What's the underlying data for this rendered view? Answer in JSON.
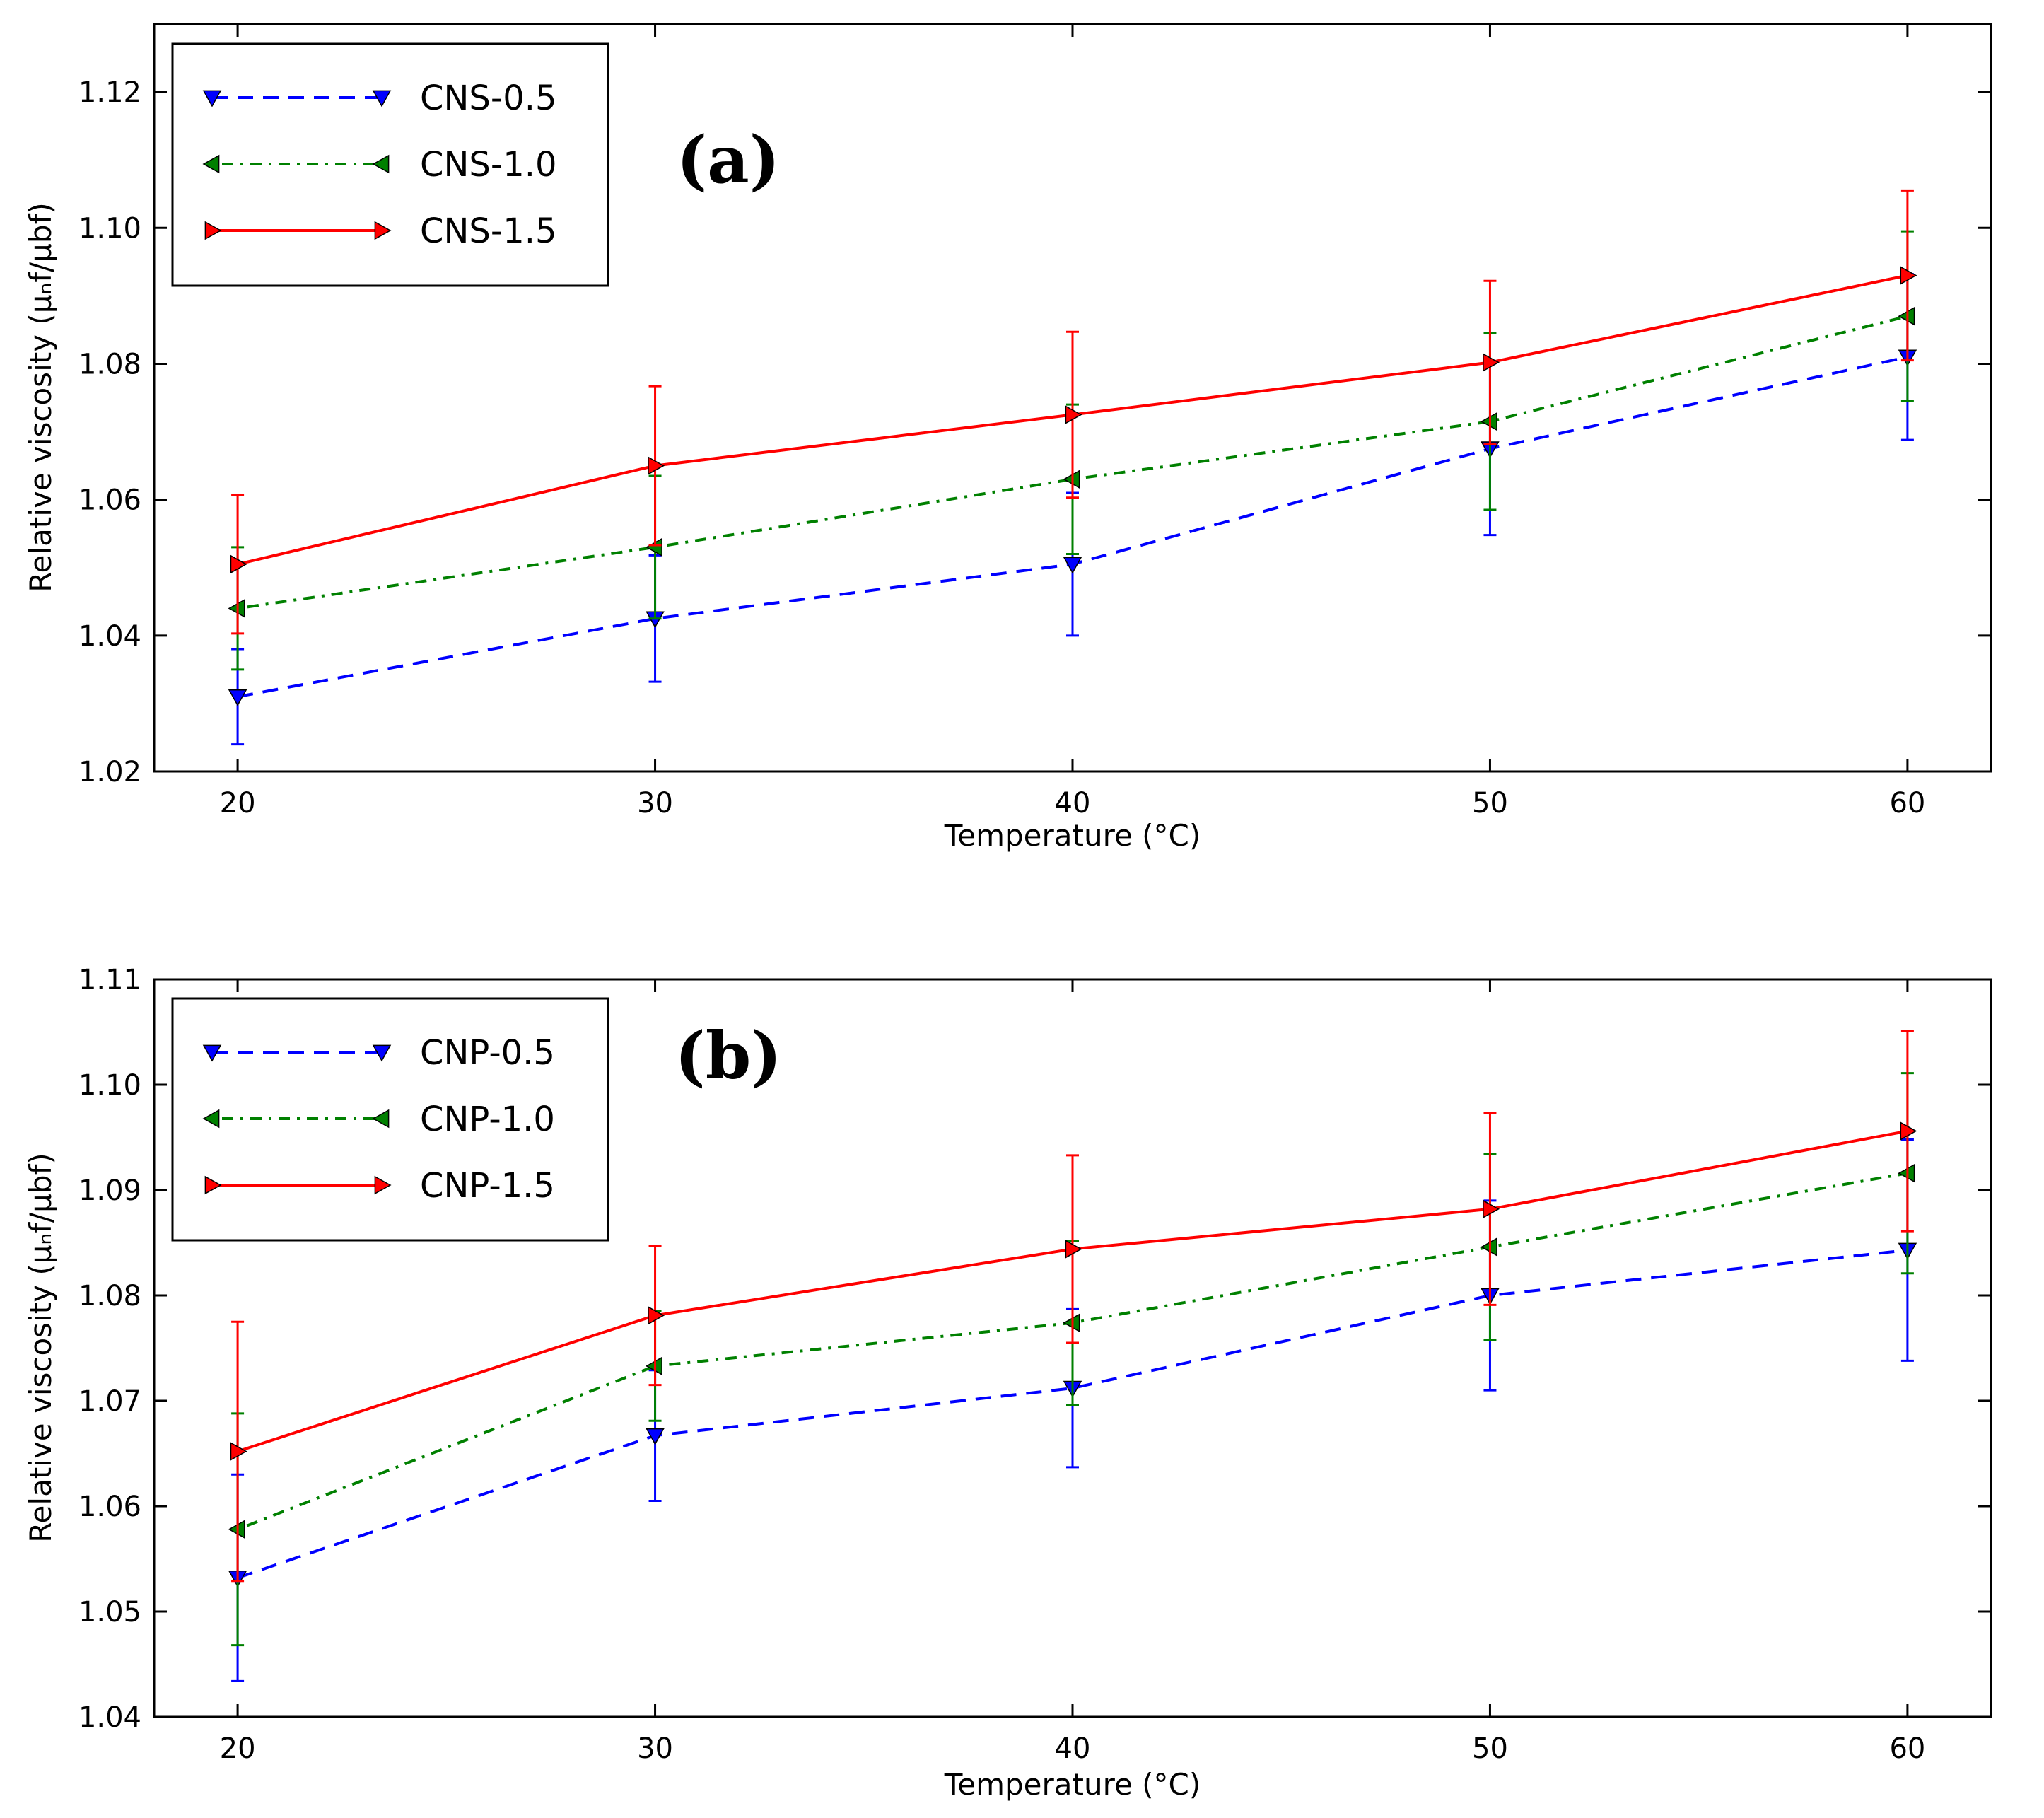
{
  "chart_data": [
    {
      "type": "line",
      "panel_label": "(a)",
      "xlabel": "Temperature (°C)",
      "ylabel": "Relative viscosity (μₙf/μbf)",
      "x": [
        20,
        30,
        40,
        50,
        60
      ],
      "xlim": [
        18,
        62
      ],
      "ylim": [
        1.02,
        1.13
      ],
      "xticks": [
        20,
        30,
        40,
        50,
        60
      ],
      "yticks": [
        1.02,
        1.04,
        1.06,
        1.08,
        1.1,
        1.12
      ],
      "xtick_labels": [
        "20",
        "30",
        "40",
        "50",
        "60"
      ],
      "ytick_labels": [
        "1.02",
        "1.04",
        "1.06",
        "1.08",
        "1.10",
        "1.12"
      ],
      "legend_position": "top-left",
      "series": [
        {
          "name": "CNS-0.5",
          "color": "#0000ff",
          "style": "dashed",
          "marker": "triangle-down",
          "values": [
            1.031,
            1.0425,
            1.0505,
            1.0675,
            1.081
          ],
          "errors": [
            0.007,
            0.0093,
            0.0105,
            0.0127,
            0.0122
          ]
        },
        {
          "name": "CNS-1.0",
          "color": "#008000",
          "style": "dashdot",
          "marker": "triangle-left",
          "values": [
            1.044,
            1.053,
            1.063,
            1.0715,
            1.087
          ],
          "errors": [
            0.009,
            0.0105,
            0.011,
            0.013,
            0.0125
          ]
        },
        {
          "name": "CNS-1.5",
          "color": "#ff0000",
          "style": "solid",
          "marker": "triangle-right",
          "values": [
            1.0505,
            1.065,
            1.0725,
            1.0802,
            1.093
          ],
          "errors": [
            0.0102,
            0.0117,
            0.0122,
            0.012,
            0.0125
          ]
        }
      ]
    },
    {
      "type": "line",
      "panel_label": "(b)",
      "xlabel": "Temperature (°C)",
      "ylabel": "Relative viscosity (μₙf/μbf)",
      "x": [
        20,
        30,
        40,
        50,
        60
      ],
      "xlim": [
        18,
        62
      ],
      "ylim": [
        1.04,
        1.11
      ],
      "xticks": [
        20,
        30,
        40,
        50,
        60
      ],
      "yticks": [
        1.04,
        1.05,
        1.06,
        1.07,
        1.08,
        1.09,
        1.1,
        1.11
      ],
      "xtick_labels": [
        "20",
        "30",
        "40",
        "50",
        "60"
      ],
      "ytick_labels": [
        "1.04",
        "1.05",
        "1.06",
        "1.07",
        "1.08",
        "1.09",
        "1.10",
        "1.11"
      ],
      "legend_position": "top-left",
      "series": [
        {
          "name": "CNP-0.5",
          "color": "#0000ff",
          "style": "dashed",
          "marker": "triangle-down",
          "values": [
            1.0532,
            1.0667,
            1.0712,
            1.08,
            1.0843
          ],
          "errors": [
            0.0098,
            0.0062,
            0.0075,
            0.009,
            0.0105
          ]
        },
        {
          "name": "CNP-1.0",
          "color": "#008000",
          "style": "dashdot",
          "marker": "triangle-left",
          "values": [
            1.0578,
            1.0733,
            1.0774,
            1.0846,
            1.0916
          ],
          "errors": [
            0.011,
            0.0052,
            0.0078,
            0.0088,
            0.0095
          ]
        },
        {
          "name": "CNP-1.5",
          "color": "#ff0000",
          "style": "solid",
          "marker": "triangle-right",
          "values": [
            1.0652,
            1.0781,
            1.0844,
            1.0882,
            1.0956
          ],
          "errors": [
            0.0123,
            0.0066,
            0.0089,
            0.0091,
            0.0095
          ]
        }
      ]
    }
  ]
}
